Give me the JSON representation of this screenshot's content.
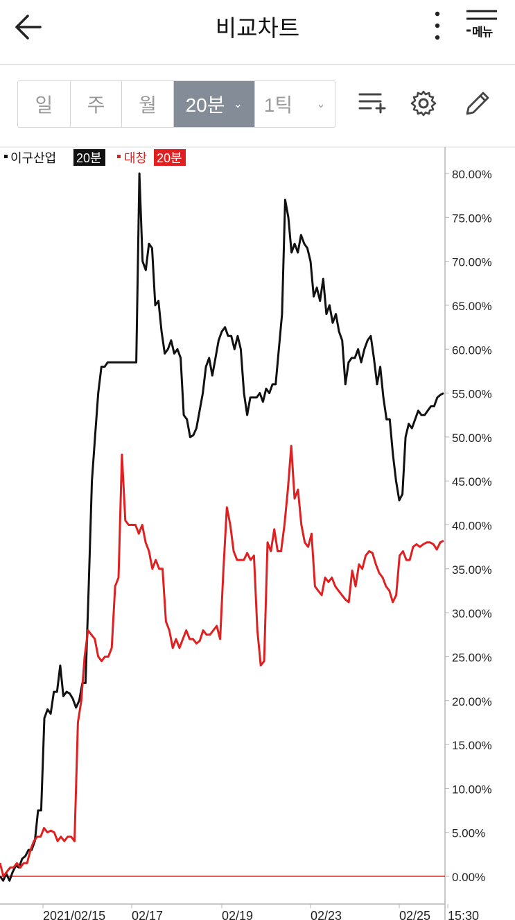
{
  "header": {
    "title": "비교차트",
    "menu_label": "메뉴"
  },
  "toolbar": {
    "periods": [
      {
        "label": "일",
        "active": false
      },
      {
        "label": "주",
        "active": false
      },
      {
        "label": "월",
        "active": false
      },
      {
        "label": "20분",
        "active": true
      },
      {
        "label": "1틱",
        "active": false
      }
    ],
    "icons": [
      "add-indicator-icon",
      "settings-gear-icon",
      "pencil-draw-icon"
    ]
  },
  "colors": {
    "series1": "#111111",
    "series2": "#e02020",
    "active_tab": "#848d97",
    "baseline": "#e02020"
  },
  "chart_data": {
    "type": "line",
    "legend": [
      {
        "name": "이구산업",
        "tag": "20분",
        "color": "#111111"
      },
      {
        "name": "대창",
        "tag": "20분",
        "color": "#e02020"
      }
    ],
    "y_ticks": [
      "80.00%",
      "75.00%",
      "70.00%",
      "65.00%",
      "60.00%",
      "55.00%",
      "50.00%",
      "45.00%",
      "40.00%",
      "35.00%",
      "30.00%",
      "25.00%",
      "20.00%",
      "15.00%",
      "10.00%",
      "5.00%",
      "0.00%"
    ],
    "ylim": [
      0,
      80
    ],
    "x_ticks": [
      "2021/02/15",
      "02/17",
      "02/19",
      "02/23",
      "02/25",
      "15:30"
    ],
    "series": [
      {
        "name": "이구산업",
        "values": [
          0,
          -0.5,
          0.3,
          -0.5,
          0.5,
          1.2,
          1,
          2,
          2.3,
          3,
          3,
          4,
          7.5,
          7.5,
          18,
          19,
          18.5,
          21,
          21,
          24,
          20.5,
          21,
          20.8,
          20.2,
          19.2,
          20,
          22,
          22,
          33,
          45,
          50,
          55,
          58,
          58,
          58.5,
          58.5,
          58.5,
          58.5,
          58.5,
          58.5,
          58.5,
          58.5,
          58.5,
          58.5,
          80,
          70,
          69,
          72,
          71.5,
          65,
          65.5,
          62,
          59.5,
          60,
          61,
          59.5,
          60,
          59,
          52.5,
          52,
          50,
          50.2,
          51,
          53,
          55,
          58,
          59,
          57,
          59,
          61,
          62,
          62.5,
          61.5,
          61.5,
          60,
          61.5,
          60,
          55,
          52.5,
          54.5,
          54.5,
          54.5,
          55,
          54,
          55.5,
          55,
          56,
          56,
          60,
          64,
          77,
          75,
          71,
          72,
          71,
          73,
          72,
          71.5,
          70,
          66,
          67,
          65.5,
          68,
          64,
          65,
          63,
          64,
          62,
          61,
          56,
          58.5,
          59,
          59,
          60,
          58.5,
          60,
          61,
          61.5,
          59,
          56,
          58,
          54.5,
          52,
          52,
          48,
          45,
          42.8,
          43.5,
          50,
          51.5,
          51,
          52,
          53,
          52.5,
          52.5,
          53,
          53.5,
          53.5,
          54.5,
          54.8,
          55
        ]
      },
      {
        "name": "대창",
        "values": [
          1.5,
          0,
          0.5,
          1,
          1,
          1.5,
          1,
          1.5,
          1.5,
          3,
          4,
          4.5,
          4.5,
          5.5,
          5,
          5.2,
          5,
          4,
          4.5,
          4,
          4.5,
          4.5,
          4,
          17.5,
          20,
          25,
          28,
          27.5,
          27,
          25,
          24.5,
          25,
          25,
          26,
          33,
          34,
          48,
          40.5,
          40,
          40,
          40,
          39,
          40,
          38,
          37,
          35,
          36,
          35,
          35,
          29,
          28,
          26,
          27,
          26,
          27,
          28,
          27,
          27,
          26.5,
          26.8,
          28,
          27.5,
          27.5,
          28,
          28.5,
          27,
          35,
          42,
          40,
          37,
          36,
          36,
          36,
          36.8,
          36,
          36.5,
          28,
          24,
          24.5,
          38,
          37,
          39.5,
          37,
          37,
          40,
          44,
          49,
          43,
          44,
          40,
          38,
          37.5,
          39,
          33,
          32.5,
          32,
          34,
          33.5,
          34,
          33,
          32.5,
          32,
          31.5,
          31.2,
          34.8,
          33,
          35.5,
          35,
          36.5,
          37,
          36.8,
          35.5,
          34.5,
          34,
          33,
          32.5,
          31.2,
          32,
          36.5,
          37,
          36,
          36,
          37.5,
          37.8,
          37.5,
          37.8,
          38,
          38,
          37.8,
          37.2,
          38,
          38.2
        ]
      }
    ]
  }
}
